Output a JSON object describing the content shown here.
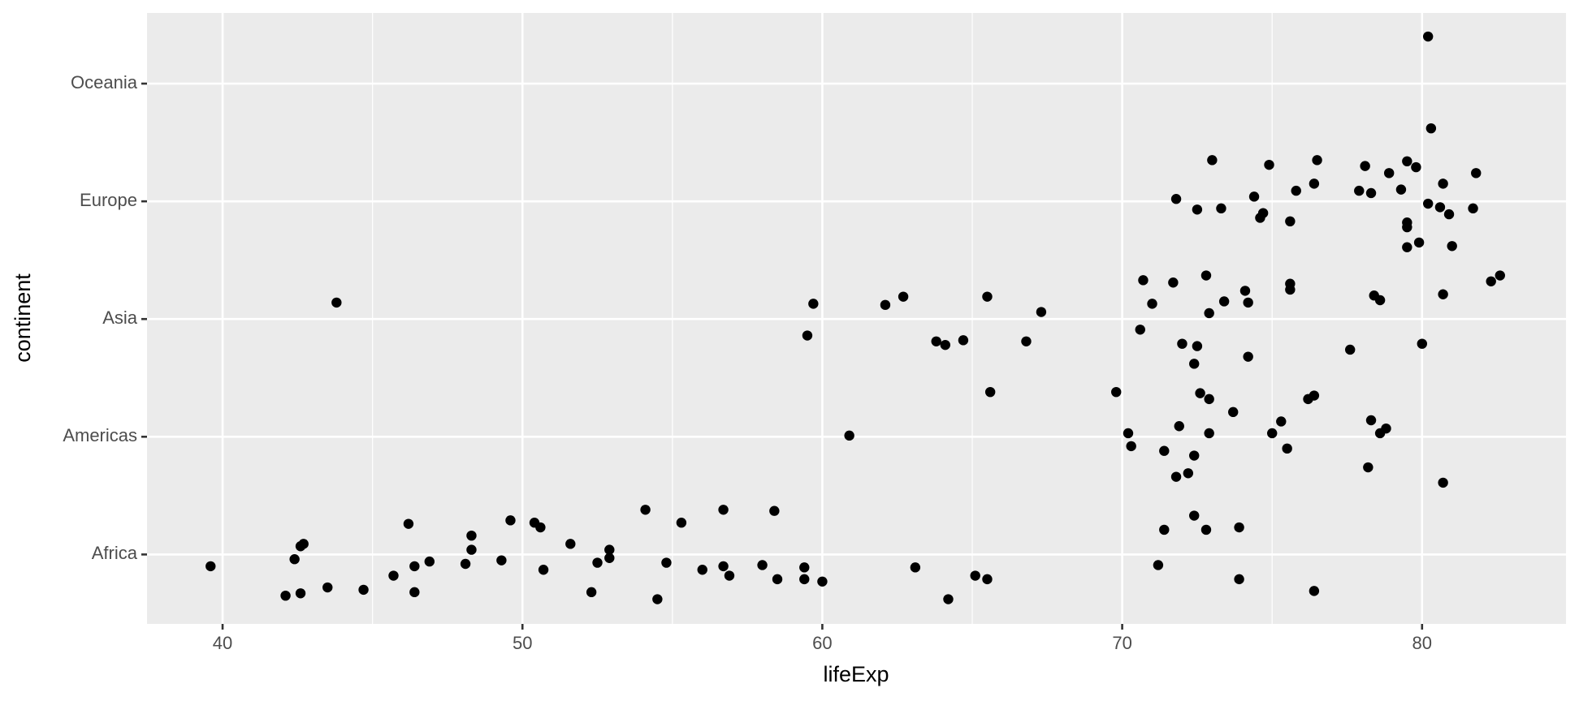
{
  "chart_data": {
    "type": "scatter",
    "x_label": "lifeExp",
    "y_label": "continent",
    "color": "#000000",
    "grid": true,
    "xlim": [
      37.48,
      84.8
    ],
    "ylim": [
      0.41,
      5.6
    ],
    "xticks": [
      40,
      50,
      60,
      70,
      80
    ],
    "yticks": [
      {
        "value": 1,
        "label": "Africa"
      },
      {
        "value": 2,
        "label": "Americas"
      },
      {
        "value": 3,
        "label": "Asia"
      },
      {
        "value": 4,
        "label": "Europe"
      },
      {
        "value": 5,
        "label": "Oceania"
      }
    ],
    "x": [
      80.2,
      80.3,
      73.0,
      74.9,
      76.5,
      78.1,
      79.5,
      79.8,
      78.9,
      81.8,
      76.4,
      75.8,
      77.9,
      78.3,
      79.3,
      80.7,
      74.4,
      71.8,
      72.5,
      73.3,
      74.7,
      74.6,
      75.6,
      80.2,
      80.6,
      80.9,
      81.7,
      79.5,
      79.5,
      79.5,
      79.9,
      81.0,
      43.8,
      59.7,
      62.1,
      62.7,
      65.5,
      67.3,
      59.5,
      63.8,
      64.1,
      64.7,
      66.8,
      70.7,
      71.7,
      72.8,
      71.0,
      73.4,
      72.9,
      74.1,
      74.2,
      75.6,
      75.6,
      78.4,
      78.6,
      80.7,
      82.3,
      82.6,
      70.6,
      72.0,
      72.5,
      72.4,
      74.2,
      77.6,
      80.0,
      65.6,
      60.9,
      69.8,
      70.2,
      70.3,
      71.4,
      71.9,
      72.6,
      72.9,
      72.4,
      72.9,
      71.8,
      72.2,
      73.7,
      75.0,
      75.3,
      75.5,
      76.2,
      76.4,
      78.3,
      78.6,
      78.8,
      78.2,
      80.7,
      39.6,
      42.1,
      42.6,
      42.4,
      42.6,
      42.7,
      43.5,
      44.7,
      45.7,
      46.2,
      46.4,
      46.4,
      46.9,
      48.1,
      48.3,
      48.3,
      49.3,
      49.6,
      50.4,
      50.6,
      50.7,
      51.6,
      52.3,
      52.5,
      52.9,
      52.9,
      54.1,
      54.5,
      54.8,
      55.3,
      56.0,
      56.7,
      56.7,
      56.9,
      58.0,
      58.4,
      58.5,
      59.4,
      59.4,
      60.0,
      63.1,
      64.2,
      65.1,
      65.5,
      71.2,
      71.4,
      72.4,
      72.8,
      73.9,
      73.9,
      76.4
    ],
    "values": [
      5.4,
      4.62,
      4.35,
      4.31,
      4.35,
      4.3,
      4.34,
      4.29,
      4.24,
      4.24,
      4.15,
      4.09,
      4.09,
      4.07,
      4.1,
      4.15,
      4.04,
      4.02,
      3.93,
      3.94,
      3.9,
      3.86,
      3.83,
      3.98,
      3.95,
      3.89,
      3.94,
      3.82,
      3.78,
      3.61,
      3.65,
      3.62,
      3.14,
      3.13,
      3.12,
      3.19,
      3.19,
      3.06,
      2.86,
      2.81,
      2.78,
      2.82,
      2.81,
      3.33,
      3.31,
      3.37,
      3.13,
      3.15,
      3.05,
      3.24,
      3.14,
      3.3,
      3.25,
      3.2,
      3.16,
      3.21,
      3.32,
      3.37,
      2.91,
      2.79,
      2.77,
      2.62,
      2.68,
      2.74,
      2.79,
      2.38,
      2.01,
      2.38,
      2.03,
      1.92,
      1.88,
      2.09,
      2.37,
      2.32,
      1.84,
      2.03,
      1.66,
      1.69,
      2.21,
      2.03,
      2.13,
      1.9,
      2.32,
      2.35,
      2.14,
      2.03,
      2.07,
      1.74,
      1.61,
      0.9,
      0.65,
      0.67,
      0.96,
      1.07,
      1.09,
      0.72,
      0.7,
      0.82,
      1.26,
      0.68,
      0.9,
      0.94,
      0.92,
      1.16,
      1.04,
      0.95,
      1.29,
      1.27,
      1.23,
      0.87,
      1.09,
      0.68,
      0.93,
      1.04,
      0.97,
      1.38,
      0.62,
      0.93,
      1.27,
      0.87,
      1.38,
      0.9,
      0.82,
      0.91,
      1.37,
      0.79,
      0.89,
      0.79,
      0.77,
      0.89,
      0.62,
      0.82,
      0.79,
      0.91,
      1.21,
      1.33,
      1.21,
      1.23,
      0.79,
      0.69
    ]
  }
}
